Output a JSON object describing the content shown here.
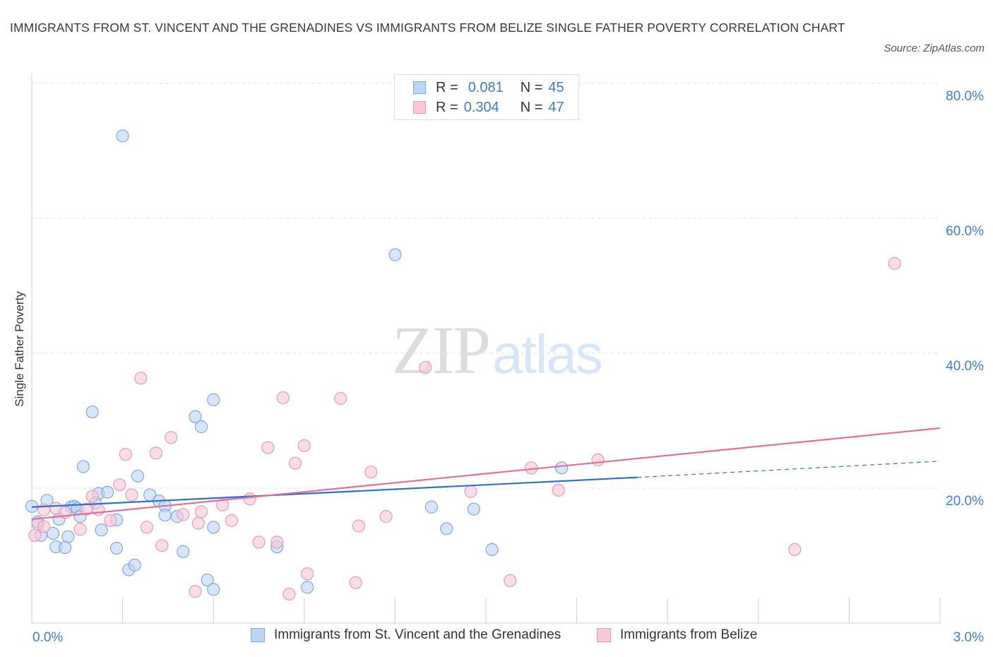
{
  "title": "IMMIGRANTS FROM ST. VINCENT AND THE GRENADINES VS IMMIGRANTS FROM BELIZE SINGLE FATHER POVERTY CORRELATION CHART",
  "source": "Source: ZipAtlas.com",
  "watermark": {
    "zip": "ZIP",
    "atlas": "atlas"
  },
  "legend": {
    "r_label": "R =",
    "n_label": "N =",
    "rows": [
      {
        "r": "0.081",
        "n": "45"
      },
      {
        "r": "0.304",
        "n": "47"
      }
    ]
  },
  "colors": {
    "blue_fill": "#bcd4f5",
    "blue_stroke": "#7ea8e3",
    "blue_line": "#2f6fd0",
    "pink_fill": "#f8c6d6",
    "pink_stroke": "#e99ab4",
    "pink_line": "#e0709a",
    "axis_label": "#3d7cd6",
    "grid": "#e2e2e2"
  },
  "chart_data": {
    "type": "scatter",
    "title": "IMMIGRANTS FROM ST. VINCENT AND THE GRENADINES VS IMMIGRANTS FROM BELIZE SINGLE FATHER POVERTY CORRELATION CHART",
    "xlabel": "",
    "ylabel": "Single Father Poverty",
    "xlim": [
      0,
      3.0
    ],
    "ylim": [
      0,
      80
    ],
    "x_tick_labels": [
      "0.0%",
      "3.0%"
    ],
    "y_ticks": [
      20,
      40,
      60,
      80
    ],
    "y_tick_labels": [
      "20.0%",
      "40.0%",
      "60.0%",
      "80.0%"
    ],
    "grid": true,
    "legend_position": "top-center",
    "series": [
      {
        "name": "Immigrants from St. Vincent and the Grenadines",
        "color": "blue",
        "trend": {
          "x0": 0.0,
          "y0": 17.2,
          "x1": 2.0,
          "y1": 21.6,
          "dash_to_x": 3.0,
          "dash_to_y": 24.0
        },
        "points": [
          [
            0.3,
            72.2
          ],
          [
            1.2,
            54.6
          ],
          [
            0.2,
            31.3
          ],
          [
            0.54,
            30.6
          ],
          [
            0.6,
            33.1
          ],
          [
            0.56,
            29.1
          ],
          [
            0.17,
            23.2
          ],
          [
            0.35,
            21.8
          ],
          [
            0.05,
            18.2
          ],
          [
            0.0,
            17.3
          ],
          [
            0.13,
            17.2
          ],
          [
            0.22,
            19.2
          ],
          [
            0.25,
            19.4
          ],
          [
            0.39,
            19.0
          ],
          [
            0.42,
            18.1
          ],
          [
            0.44,
            17.4
          ],
          [
            0.14,
            17.3
          ],
          [
            0.15,
            17.0
          ],
          [
            0.21,
            17.8
          ],
          [
            0.16,
            15.8
          ],
          [
            0.28,
            15.3
          ],
          [
            0.44,
            16.0
          ],
          [
            0.48,
            15.8
          ],
          [
            0.02,
            15.0
          ],
          [
            0.09,
            15.4
          ],
          [
            0.6,
            14.2
          ],
          [
            0.03,
            13.0
          ],
          [
            0.07,
            13.3
          ],
          [
            0.12,
            12.8
          ],
          [
            0.23,
            13.8
          ],
          [
            0.08,
            11.3
          ],
          [
            0.11,
            11.2
          ],
          [
            0.28,
            11.1
          ],
          [
            0.5,
            10.6
          ],
          [
            0.81,
            11.3
          ],
          [
            1.32,
            17.2
          ],
          [
            1.37,
            14.0
          ],
          [
            1.46,
            16.9
          ],
          [
            1.52,
            10.9
          ],
          [
            1.75,
            23.0
          ],
          [
            0.32,
            7.9
          ],
          [
            0.34,
            8.6
          ],
          [
            0.58,
            6.4
          ],
          [
            0.6,
            5.0
          ],
          [
            0.91,
            5.3
          ]
        ]
      },
      {
        "name": "Immigrants from Belize",
        "color": "pink",
        "trend": {
          "x0": 0.0,
          "y0": 15.4,
          "x1": 3.0,
          "y1": 28.9
        },
        "points": [
          [
            2.85,
            53.3
          ],
          [
            1.3,
            37.9
          ],
          [
            0.36,
            36.3
          ],
          [
            0.83,
            33.4
          ],
          [
            1.02,
            33.3
          ],
          [
            0.46,
            27.5
          ],
          [
            0.31,
            25.0
          ],
          [
            0.41,
            25.2
          ],
          [
            0.78,
            26.0
          ],
          [
            0.9,
            26.3
          ],
          [
            0.87,
            23.7
          ],
          [
            1.12,
            22.4
          ],
          [
            1.65,
            23.0
          ],
          [
            1.87,
            24.2
          ],
          [
            0.29,
            20.5
          ],
          [
            0.33,
            19.0
          ],
          [
            0.2,
            18.8
          ],
          [
            1.45,
            19.5
          ],
          [
            1.74,
            19.7
          ],
          [
            0.72,
            18.4
          ],
          [
            0.63,
            17.5
          ],
          [
            0.04,
            16.8
          ],
          [
            0.08,
            17.0
          ],
          [
            0.11,
            16.4
          ],
          [
            0.18,
            16.9
          ],
          [
            0.22,
            16.8
          ],
          [
            0.5,
            16.1
          ],
          [
            0.56,
            16.5
          ],
          [
            0.26,
            15.2
          ],
          [
            0.66,
            15.2
          ],
          [
            1.17,
            15.8
          ],
          [
            0.02,
            14.7
          ],
          [
            0.04,
            14.3
          ],
          [
            0.16,
            13.9
          ],
          [
            0.38,
            14.2
          ],
          [
            0.55,
            14.8
          ],
          [
            1.08,
            14.4
          ],
          [
            0.01,
            13.0
          ],
          [
            0.43,
            11.5
          ],
          [
            0.75,
            12.0
          ],
          [
            0.81,
            12.0
          ],
          [
            2.52,
            10.9
          ],
          [
            0.91,
            7.3
          ],
          [
            1.07,
            6.0
          ],
          [
            1.58,
            6.3
          ],
          [
            0.54,
            4.7
          ],
          [
            0.85,
            4.3
          ]
        ]
      }
    ]
  }
}
